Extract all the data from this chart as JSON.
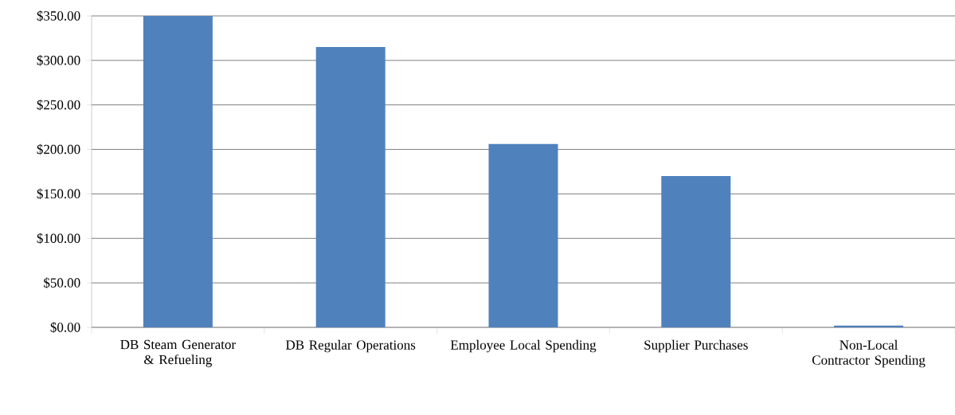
{
  "chart_data": {
    "type": "bar",
    "categories": [
      "DB Steam Generator & Refueling",
      "DB Regular Operations",
      "Employee Local Spending",
      "Supplier Purchases",
      "Non-Local Contractor Spending"
    ],
    "values": [
      350,
      315,
      206,
      170,
      2
    ],
    "color": "#4f81bd",
    "ylim": [
      0,
      350
    ],
    "yticks": [
      {
        "value": 0,
        "label": "$0.00"
      },
      {
        "value": 50,
        "label": "$50.00"
      },
      {
        "value": 100,
        "label": "$100.00"
      },
      {
        "value": 150,
        "label": "$150.00"
      },
      {
        "value": 200,
        "label": "$200.00"
      },
      {
        "value": 250,
        "label": "$250.00"
      },
      {
        "value": 300,
        "label": "$300.00"
      },
      {
        "value": 350,
        "label": "$350.00"
      }
    ],
    "grid": "y"
  }
}
